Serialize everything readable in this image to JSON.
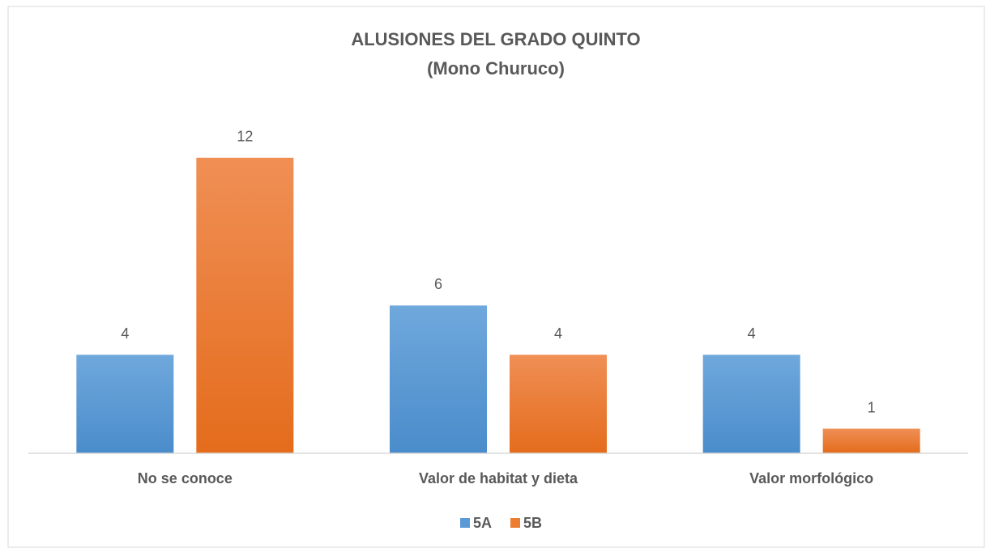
{
  "chart_data": {
    "type": "bar",
    "title": "ALUSIONES DEL GRADO QUINTO",
    "subtitle": "(Mono Churuco)",
    "categories": [
      "No se conoce",
      "Valor de habitat y dieta",
      "Valor morfológico"
    ],
    "series": [
      {
        "name": "5A",
        "color": "#5b9bd5",
        "values": [
          4,
          6,
          4
        ]
      },
      {
        "name": "5B",
        "color": "#ed7d31",
        "values": [
          12,
          4,
          1
        ]
      }
    ],
    "ylim": [
      0,
      14
    ],
    "legend": "bottom"
  }
}
